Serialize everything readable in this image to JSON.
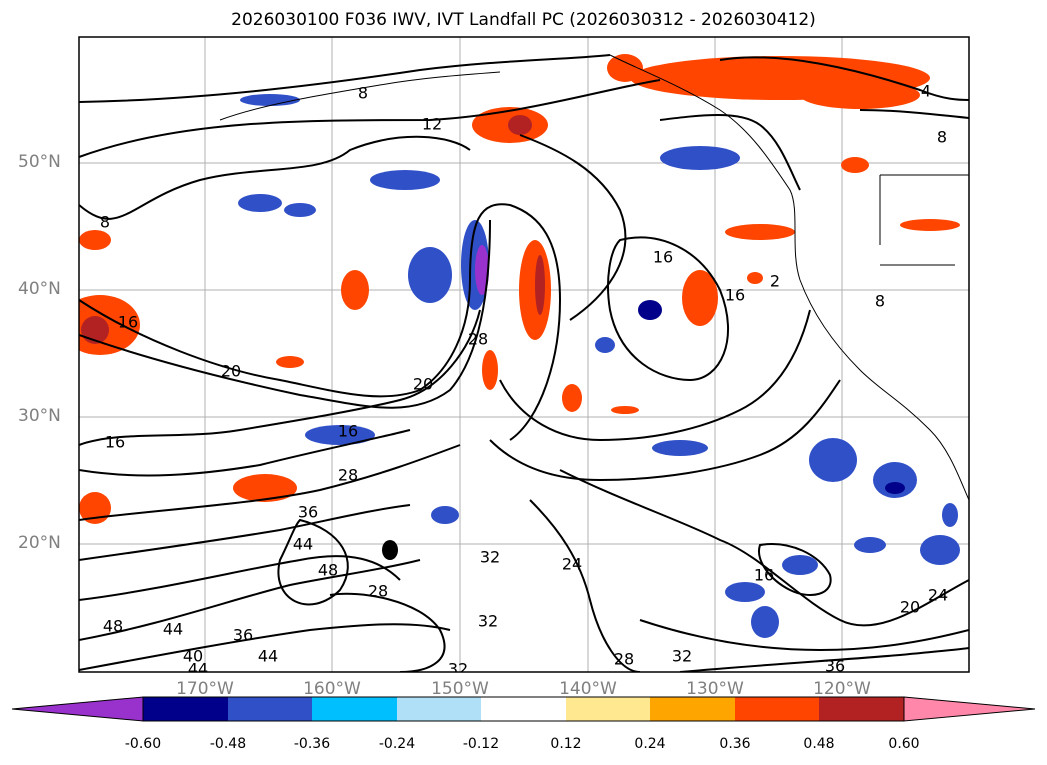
{
  "title": "2026030100 F036 IWV, IVT Landfall PC (2026030312 - 2026030412)",
  "lat_labels": [
    "50°N",
    "40°N",
    "30°N",
    "20°N"
  ],
  "lon_labels": [
    "170°W",
    "160°W",
    "150°W",
    "140°W",
    "130°W",
    "120°W"
  ],
  "colorbar": {
    "ticks": [
      "-0.60",
      "-0.48",
      "-0.36",
      "-0.24",
      "-0.12",
      "0.12",
      "0.24",
      "0.36",
      "0.48",
      "0.60"
    ],
    "colors": [
      "#9932cc",
      "#00008b",
      "#3050c8",
      "#00bfff",
      "#b0e0f8",
      "#ffffff",
      "#ffe88f",
      "#ffa500",
      "#ff4500",
      "#b22222",
      "#ff88aa"
    ]
  },
  "contour_labels": [
    "8",
    "12",
    "4",
    "8",
    "8",
    "16",
    "16",
    "16",
    "2",
    "8",
    "20",
    "20",
    "28",
    "16",
    "28",
    "36",
    "44",
    "48",
    "16",
    "32",
    "28",
    "24",
    "16",
    "20",
    "24",
    "48",
    "44",
    "36",
    "44",
    "40",
    "44",
    "32",
    "32",
    "28",
    "32",
    "36"
  ]
}
